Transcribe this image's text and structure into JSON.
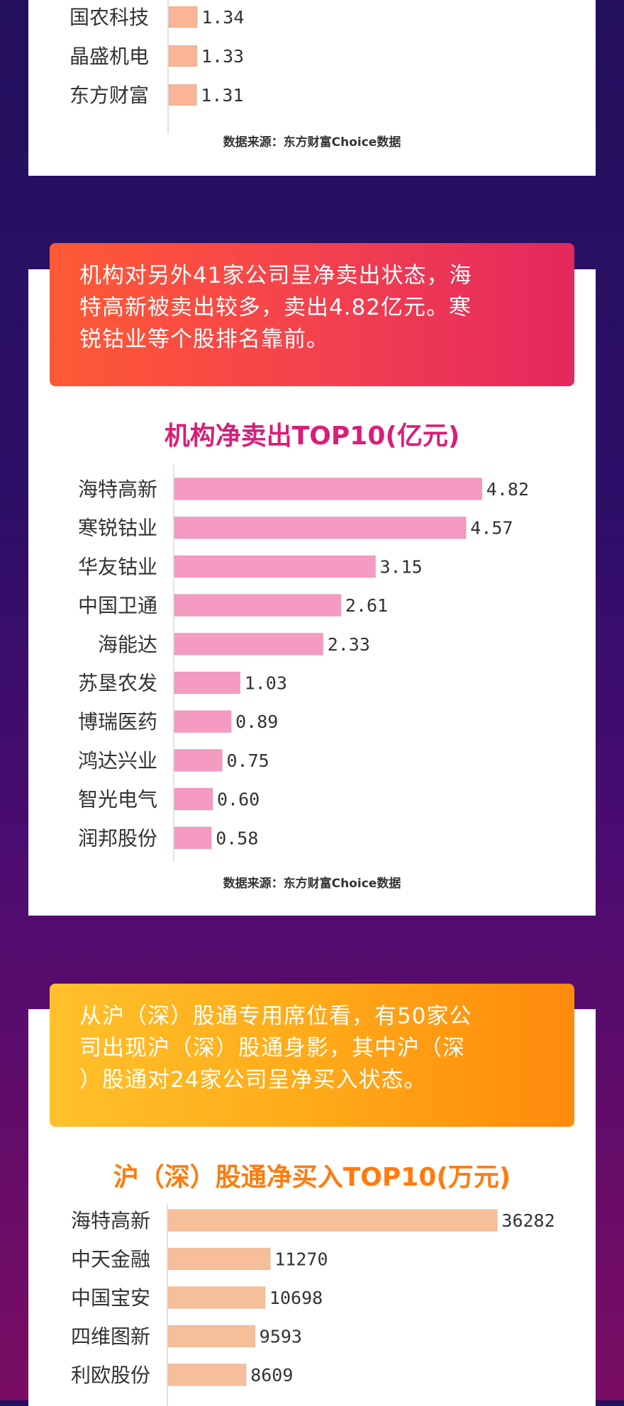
{
  "chart_data": [
    {
      "type": "bar",
      "orientation": "horizontal",
      "title": "",
      "categories": [
        "国农科技",
        "晶盛机电",
        "东方财富"
      ],
      "values": [
        1.34,
        1.33,
        1.31
      ],
      "value_labels": [
        "1.34",
        "1.33",
        "1.31"
      ],
      "color": "#f9b594",
      "source": "数据来源：东方财富Choice数据"
    },
    {
      "type": "bar",
      "orientation": "horizontal",
      "title": "机构净卖出TOP10(亿元)",
      "categories": [
        "海特高新",
        "寒锐钴业",
        "华友钴业",
        "中国卫通",
        "海能达",
        "苏垦农发",
        "博瑞医药",
        "鸿达兴业",
        "智光电气",
        "润邦股份"
      ],
      "values": [
        4.82,
        4.57,
        3.15,
        2.61,
        2.33,
        1.03,
        0.89,
        0.75,
        0.6,
        0.58
      ],
      "value_labels": [
        "4.82",
        "4.57",
        "3.15",
        "2.61",
        "2.33",
        "1.03",
        "0.89",
        "0.75",
        "0.60",
        "0.58"
      ],
      "color": "#f59ac0",
      "title_color": "#d81e78",
      "source": "数据来源：东方财富Choice数据"
    },
    {
      "type": "bar",
      "orientation": "horizontal",
      "title": "沪（深）股通净买入TOP10(万元)",
      "categories": [
        "海特高新",
        "中天金融",
        "中国宝安",
        "四维图新",
        "利欧股份"
      ],
      "values": [
        36282,
        11270,
        10698,
        9593,
        8609
      ],
      "value_labels": [
        "36282",
        "11270",
        "10698",
        "9593",
        "8609"
      ],
      "color": "#f7bf99",
      "title_color": "#ff7b0d"
    }
  ],
  "banners": {
    "sell": {
      "lines": [
        "机构对另外41家公司呈净卖出状态，海",
        "特高新被卖出较多，卖出4.82亿元。寒",
        "锐钴业等个股排名靠前。"
      ]
    },
    "hk": {
      "lines": [
        "从沪（深）股通专用席位看，有50家公",
        "司出现沪（深）股通身影，其中沪（深",
        "）股通对24家公司呈净买入状态。"
      ]
    }
  }
}
